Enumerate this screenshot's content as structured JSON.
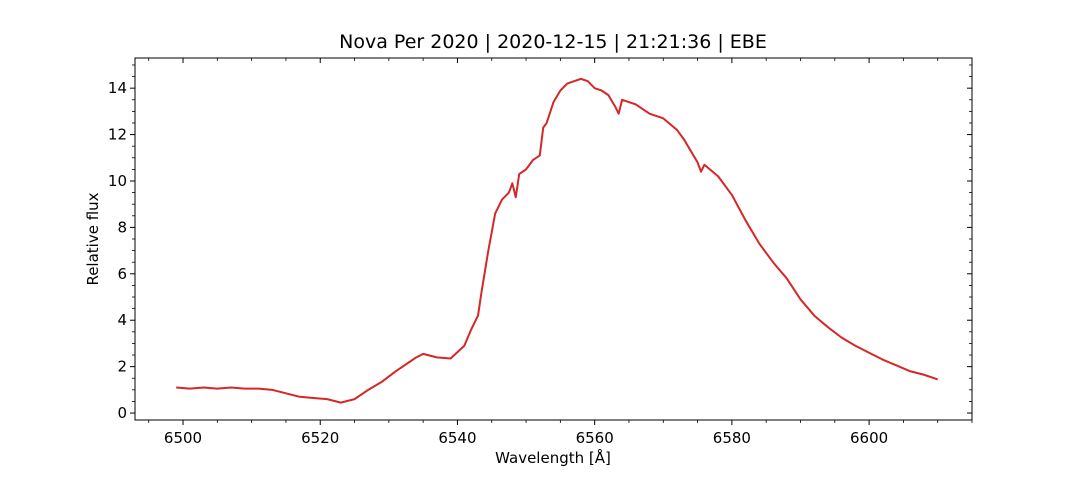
{
  "chart_data": {
    "type": "line",
    "title": "Nova Per 2020 | 2020-12-15 | 21:21:36 | EBE",
    "xlabel": "Wavelength [Å]",
    "ylabel": "Relative flux",
    "xlim": [
      6493,
      6615
    ],
    "ylim": [
      -0.3,
      15.3
    ],
    "x_ticks": [
      6500,
      6520,
      6540,
      6560,
      6580,
      6600
    ],
    "y_ticks": [
      0,
      2,
      4,
      6,
      8,
      10,
      12,
      14
    ],
    "grid": false,
    "line_color": "#d62728",
    "series": [
      {
        "x": [
          6499,
          6501,
          6503,
          6505,
          6507,
          6509,
          6511,
          6513,
          6515,
          6517,
          6519,
          6521,
          6523,
          6525,
          6527,
          6529,
          6531,
          6533,
          6534,
          6535,
          6537,
          6539,
          6541,
          6542,
          6543,
          6543.5,
          6544.5,
          6545.5,
          6546.5,
          6547.5,
          6548,
          6548.5,
          6549,
          6550,
          6551,
          6552,
          6552.5,
          6553,
          6554,
          6555,
          6556,
          6557,
          6558,
          6559,
          6560,
          6561,
          6562,
          6563,
          6563.5,
          6564,
          6566,
          6568,
          6570,
          6572,
          6573,
          6574,
          6575,
          6575.5,
          6576,
          6578,
          6580,
          6582,
          6584,
          6586,
          6588,
          6590,
          6592,
          6594,
          6596,
          6598,
          6600,
          6602,
          6604,
          6606,
          6608,
          6610
        ],
        "y": [
          1.1,
          1.05,
          1.1,
          1.05,
          1.1,
          1.05,
          1.05,
          1.0,
          0.85,
          0.7,
          0.65,
          0.6,
          0.45,
          0.6,
          1.0,
          1.35,
          1.8,
          2.2,
          2.4,
          2.55,
          2.4,
          2.35,
          2.9,
          3.6,
          4.2,
          5.2,
          7.0,
          8.6,
          9.2,
          9.5,
          9.9,
          9.3,
          10.3,
          10.5,
          10.9,
          11.1,
          12.3,
          12.5,
          13.4,
          13.9,
          14.2,
          14.3,
          14.4,
          14.3,
          14.0,
          13.9,
          13.7,
          13.2,
          12.9,
          13.5,
          13.3,
          12.9,
          12.7,
          12.2,
          11.8,
          11.3,
          10.8,
          10.4,
          10.7,
          10.2,
          9.4,
          8.3,
          7.3,
          6.5,
          5.8,
          4.9,
          4.2,
          3.7,
          3.25,
          2.9,
          2.6,
          2.3,
          2.05,
          1.8,
          1.65,
          1.45
        ]
      }
    ]
  }
}
